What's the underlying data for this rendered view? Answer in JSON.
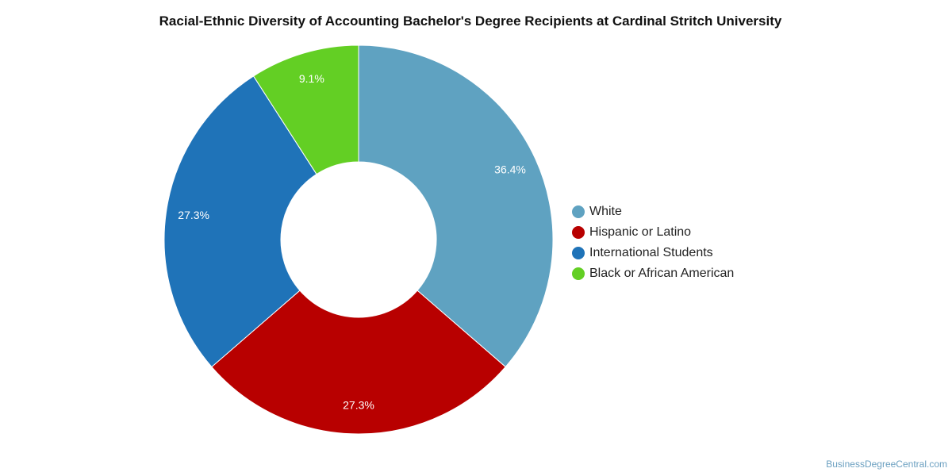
{
  "chart_data": {
    "type": "pie",
    "title": "Racial-Ethnic Diversity of Accounting Bachelor's Degree Recipients at Cardinal Stritch University",
    "categories": [
      "White",
      "Hispanic or Latino",
      "International Students",
      "Black or African American"
    ],
    "values": [
      36.4,
      27.3,
      27.3,
      9.1
    ],
    "labels": [
      "36.4%",
      "27.3%",
      "27.3%",
      "9.1%"
    ],
    "colors": [
      "#5fa2c1",
      "#b80000",
      "#1f73b8",
      "#63cf24"
    ],
    "donut": true,
    "legend_position": "right"
  },
  "source": "BusinessDegreeCentral.com"
}
